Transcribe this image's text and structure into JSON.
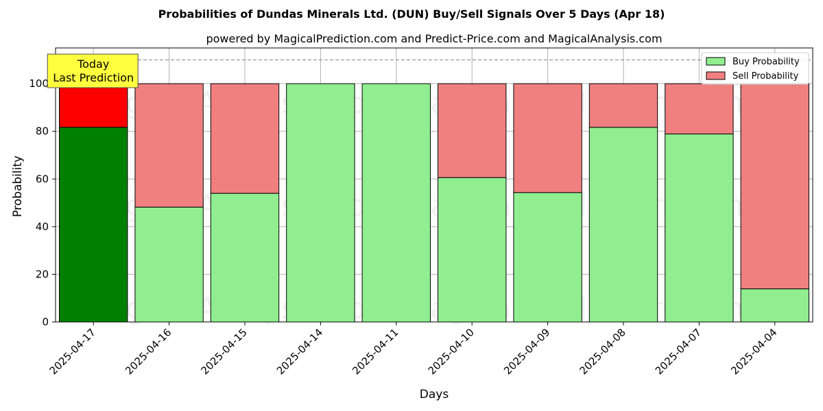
{
  "chart_data": {
    "type": "bar",
    "stacked": true,
    "title": "Probabilities of Dundas Minerals Ltd. (DUN) Buy/Sell Signals Over 5 Days (Apr 18)",
    "subtitle": "powered by MagicalPrediction.com and Predict-Price.com and MagicalAnalysis.com",
    "xlabel": "Days",
    "ylabel": "Probability",
    "ylim": [
      0,
      115
    ],
    "yticks": [
      0,
      20,
      40,
      60,
      80,
      100
    ],
    "grid": true,
    "reference_line": 110,
    "legend_position": "top-right",
    "categories": [
      "2025-04-17",
      "2025-04-16",
      "2025-04-15",
      "2025-04-14",
      "2025-04-11",
      "2025-04-10",
      "2025-04-09",
      "2025-04-08",
      "2025-04-07",
      "2025-04-04"
    ],
    "series": [
      {
        "name": "Buy Probability",
        "color": "#90ee90",
        "highlight_color": "#008000",
        "values": [
          81.7,
          48.2,
          54.0,
          100.0,
          100.0,
          60.6,
          54.3,
          81.7,
          78.9,
          13.9
        ]
      },
      {
        "name": "Sell Probability",
        "color": "#f08080",
        "highlight_color": "#ff0000",
        "values": [
          18.3,
          51.8,
          46.0,
          0.0,
          0.0,
          39.4,
          45.7,
          18.3,
          21.1,
          86.1
        ]
      }
    ],
    "highlight_index": 0,
    "annotation": {
      "lines": [
        "Today",
        "Last Prediction"
      ],
      "color": "#ffff40"
    },
    "watermarks": [
      "MagicalAnalysis.com",
      "MagicalPrediction.com",
      "MagicalAnalysis.com",
      "MagicalPrediction.com",
      "MagicalAnalysis.com",
      "MagicalPrediction.com"
    ]
  }
}
